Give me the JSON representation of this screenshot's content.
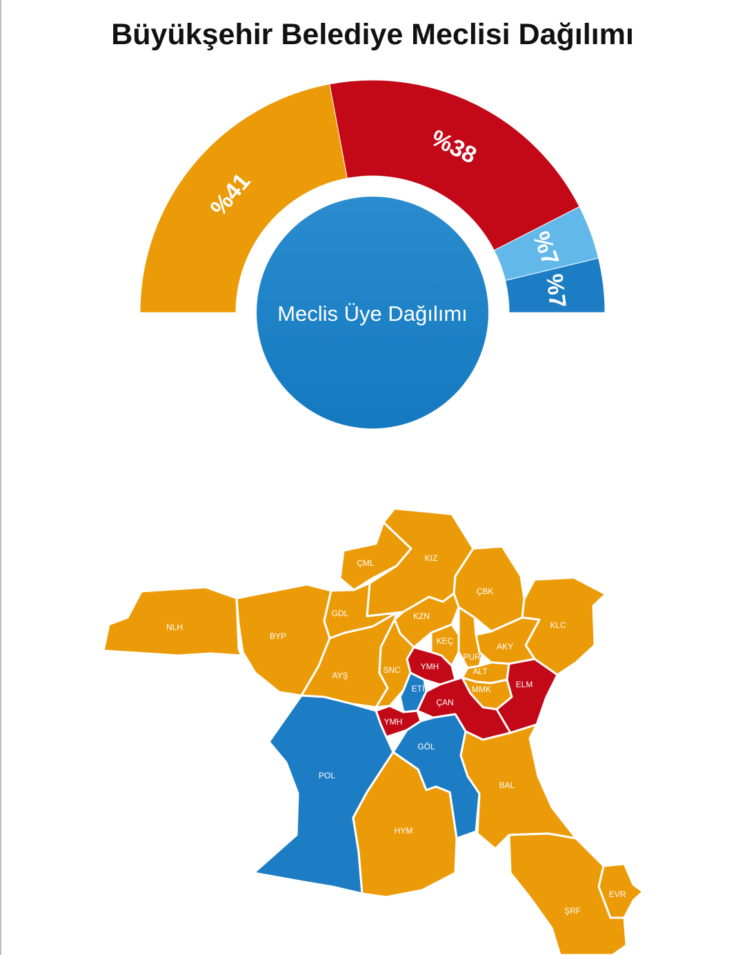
{
  "title": "Büyükşehir Belediye Meclisi Dağılımı",
  "colors": {
    "orange": "#EC9B08",
    "red": "#C30817",
    "light_blue": "#63B8EA",
    "blue": "#1D7DC4",
    "center_top": "#2A8CCE",
    "center_bottom": "#1479C0"
  },
  "chart_data": [
    {
      "type": "pie",
      "variant": "half-donut",
      "center_label": "Meclis Üye Dağılımı",
      "slices": [
        {
          "label": "%41",
          "value": 41,
          "color": "#EC9B08"
        },
        {
          "label": "%38",
          "value": 38,
          "color": "#C30817"
        },
        {
          "label": "%7",
          "value": 7,
          "color": "#63B8EA"
        },
        {
          "label": "%7",
          "value": 7,
          "color": "#1D7DC4"
        }
      ]
    }
  ],
  "map": {
    "regions": [
      {
        "code": "NLH",
        "color": "#EC9B08"
      },
      {
        "code": "BYP",
        "color": "#EC9B08"
      },
      {
        "code": "ÇML",
        "color": "#EC9B08"
      },
      {
        "code": "KIZ",
        "color": "#EC9B08"
      },
      {
        "code": "GDL",
        "color": "#EC9B08"
      },
      {
        "code": "ÇBK",
        "color": "#EC9B08"
      },
      {
        "code": "KLC",
        "color": "#EC9B08"
      },
      {
        "code": "KZN",
        "color": "#EC9B08"
      },
      {
        "code": "AYŞ",
        "color": "#EC9B08"
      },
      {
        "code": "SNC",
        "color": "#EC9B08"
      },
      {
        "code": "KEÇ",
        "color": "#EC9B08"
      },
      {
        "code": "PUR",
        "color": "#EC9B08"
      },
      {
        "code": "AKY",
        "color": "#EC9B08"
      },
      {
        "code": "ALT",
        "color": "#EC9B08"
      },
      {
        "code": "MMK",
        "color": "#EC9B08"
      },
      {
        "code": "YMH",
        "color": "#C30817"
      },
      {
        "code": "ELM",
        "color": "#C30817"
      },
      {
        "code": "ETİ",
        "color": "#1D7DC4"
      },
      {
        "code": "ÇAN",
        "color": "#C30817"
      },
      {
        "code": "YMH",
        "color": "#C30817"
      },
      {
        "code": "GÖL",
        "color": "#1D7DC4"
      },
      {
        "code": "POL",
        "color": "#1D7DC4"
      },
      {
        "code": "BAL",
        "color": "#EC9B08"
      },
      {
        "code": "HYM",
        "color": "#EC9B08"
      },
      {
        "code": "ŞRF",
        "color": "#EC9B08"
      },
      {
        "code": "EVR",
        "color": "#EC9B08"
      }
    ]
  }
}
